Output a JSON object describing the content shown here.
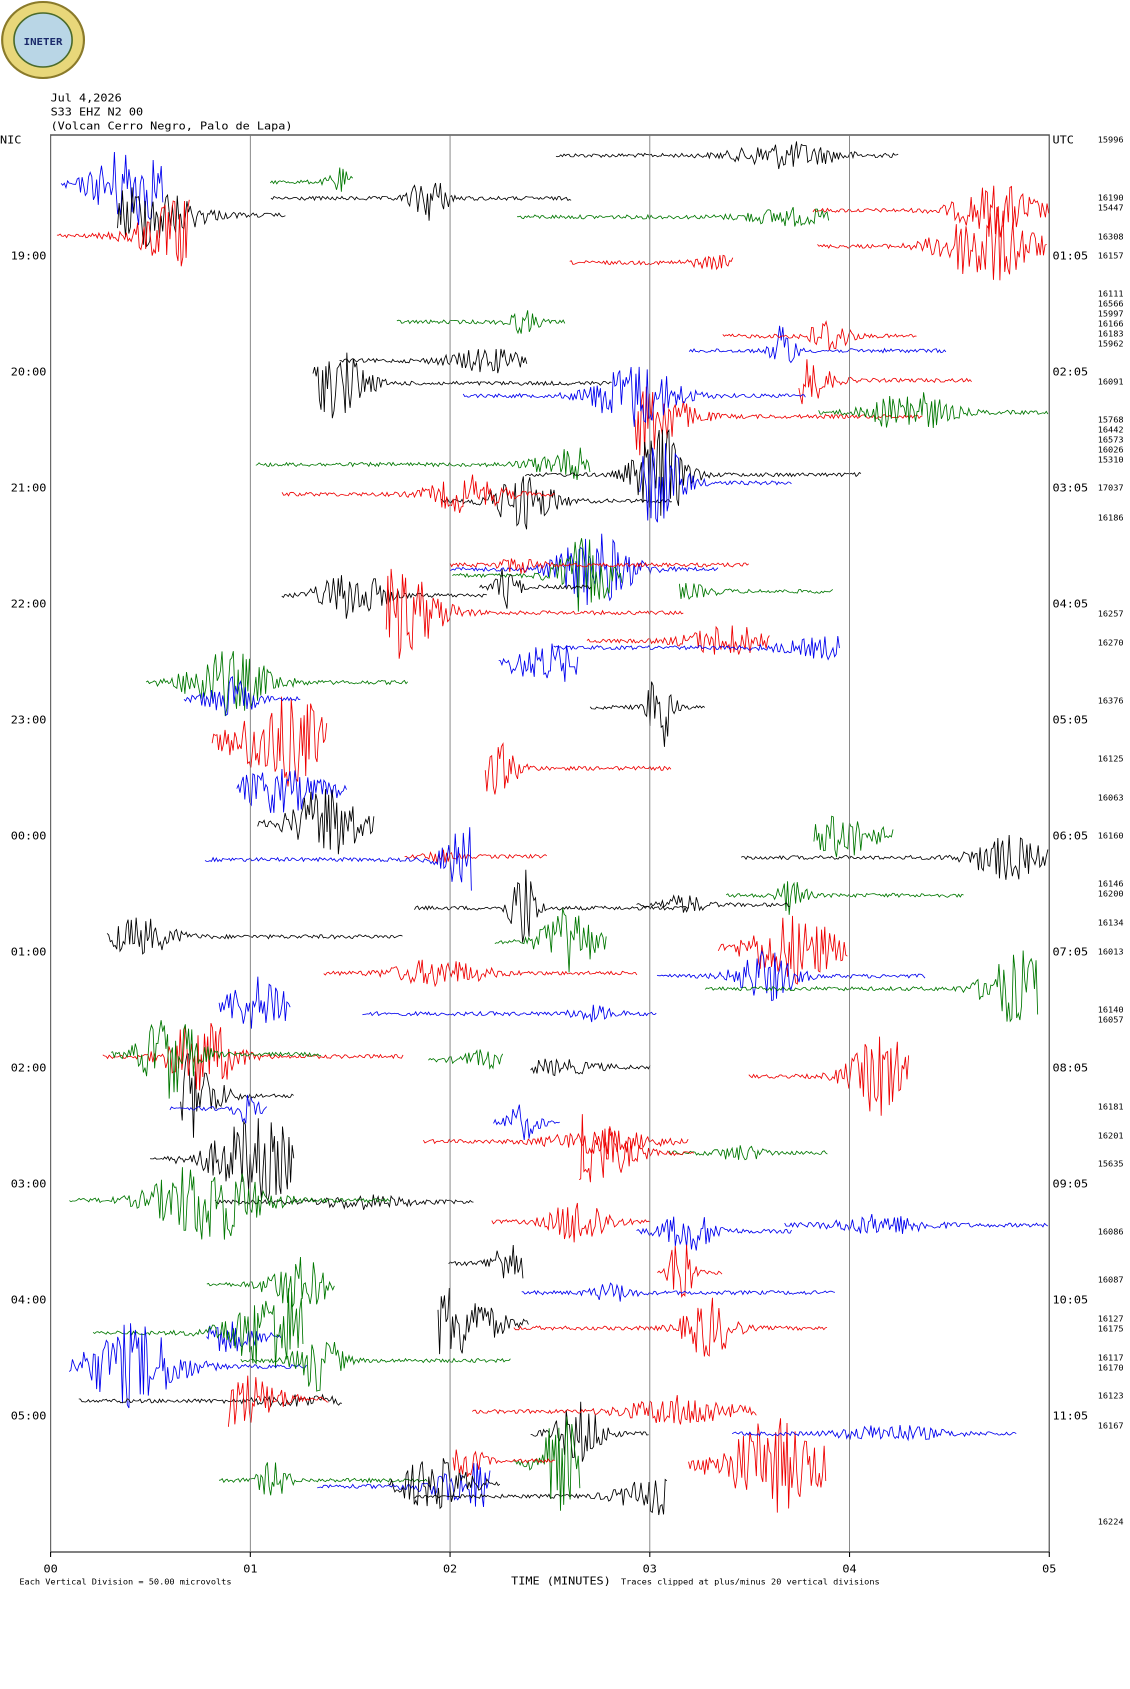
{
  "chart_data": {
    "type": "helicorder",
    "logo_text": "INETER",
    "date": "Jul 4,2026",
    "channel": "S33 EHZ N2 00",
    "station": "(Volcan Cerro Negro, Palo de Lapa)",
    "left_labels": [
      "NIC",
      "19:00",
      "20:00",
      "21:00",
      "22:00",
      "23:00",
      "00:00",
      "01:00",
      "02:00",
      "03:00",
      "04:00",
      "05:00"
    ],
    "right_labels": [
      "UTC",
      "01:05",
      "02:05",
      "03:05",
      "04:05",
      "05:05",
      "06:05",
      "07:05",
      "08:05",
      "09:05",
      "10:05",
      "11:05"
    ],
    "trace_labels": [
      "15996",
      "16190",
      "15447",
      "16308",
      "16157",
      "16111",
      "16566",
      "15997",
      "16166",
      "16183",
      "15962",
      "16091",
      "15768",
      "16442",
      "16573",
      "16026",
      "15310",
      "17037",
      "16186",
      "16257",
      "16270",
      "16376",
      "16125",
      "16063",
      "16160",
      "16146",
      "16200",
      "16134",
      "16013",
      "16140",
      "16057",
      "16181",
      "16201",
      "15635",
      "16086",
      "16087",
      "16127",
      "16175",
      "16117",
      "16170",
      "16123",
      "16167",
      "16224"
    ],
    "xlim": [
      0,
      5
    ],
    "xticks": [
      {
        "value": 0,
        "label": "00"
      },
      {
        "value": 1,
        "label": "01"
      },
      {
        "value": 2,
        "label": "02"
      },
      {
        "value": 3,
        "label": "03"
      },
      {
        "value": 4,
        "label": "04"
      },
      {
        "value": 5,
        "label": "05"
      }
    ],
    "xlabel": "TIME (MINUTES)",
    "scale_note": "Each Vertical Division =   50.00 microvolts",
    "clip_note": "Traces clipped at plus/minus 20 vertical divisions",
    "grid": true
  }
}
